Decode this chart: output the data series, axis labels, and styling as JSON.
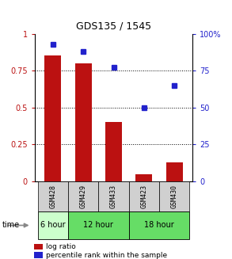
{
  "title": "GDS135 / 1545",
  "samples": [
    "GSM428",
    "GSM429",
    "GSM433",
    "GSM423",
    "GSM430"
  ],
  "log_ratio": [
    0.85,
    0.8,
    0.4,
    0.05,
    0.13
  ],
  "percentile_rank": [
    0.93,
    0.88,
    0.77,
    0.5,
    0.65
  ],
  "bar_color": "#bb1111",
  "dot_color": "#2222cc",
  "ylim_left": [
    0,
    1
  ],
  "ylim_right": [
    0,
    100
  ],
  "yticks_left": [
    0,
    0.25,
    0.5,
    0.75,
    1.0
  ],
  "ytick_labels_left": [
    "0",
    "0.25",
    "0.5",
    "0.75",
    "1"
  ],
  "yticks_right": [
    0,
    25,
    50,
    75,
    100
  ],
  "ytick_labels_right": [
    "0",
    "25",
    "50",
    "75",
    "100%"
  ],
  "time_groups": [
    {
      "label": "6 hour",
      "indices": [
        0
      ],
      "color": "#ccffcc"
    },
    {
      "label": "12 hour",
      "indices": [
        1,
        2
      ],
      "color": "#66dd66"
    },
    {
      "label": "18 hour",
      "indices": [
        3,
        4
      ],
      "color": "#66dd66"
    }
  ],
  "sample_bg_color": "#d0d0d0",
  "legend_bar_label": "log ratio",
  "legend_dot_label": "percentile rank within the sample",
  "time_label": "time",
  "bar_width": 0.55
}
